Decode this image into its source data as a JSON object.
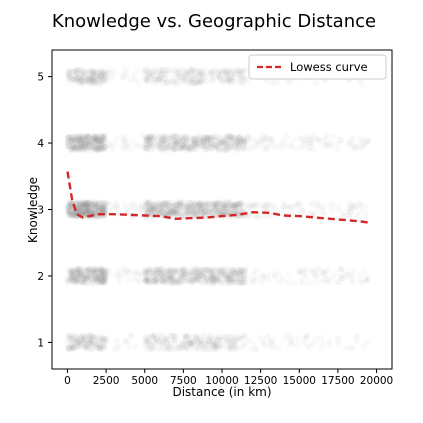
{
  "chart_data": {
    "type": "scatter",
    "title": "Knowledge vs. Geographic Distance",
    "xlabel": "Distance (in km)",
    "ylabel": "Knowledge",
    "xlim": [
      -1000,
      21000
    ],
    "ylim": [
      0.6,
      5.4
    ],
    "xticks": [
      0,
      2500,
      5000,
      7500,
      10000,
      12500,
      15000,
      17500,
      20000
    ],
    "yticks": [
      1,
      2,
      3,
      4,
      5
    ],
    "grid": false,
    "legend": {
      "placement": "top-right",
      "entries": [
        "Lowess curve"
      ]
    },
    "colors": {
      "scatter": "#808080",
      "lowess": "#d62728"
    },
    "scatter_levels": [
      1,
      2,
      3,
      4,
      5
    ],
    "scatter_x_range": [
      0,
      19500
    ],
    "series": [
      {
        "name": "Lowess curve",
        "style": "dashed",
        "x": [
          0,
          300,
          600,
          1000,
          2000,
          3000,
          4000,
          5000,
          6000,
          7000,
          8000,
          9000,
          10000,
          11000,
          12000,
          13000,
          14000,
          15000,
          16000,
          17000,
          18000,
          19000,
          19600
        ],
        "y": [
          3.57,
          3.15,
          2.93,
          2.88,
          2.93,
          2.93,
          2.92,
          2.91,
          2.9,
          2.86,
          2.87,
          2.88,
          2.9,
          2.92,
          2.96,
          2.95,
          2.91,
          2.9,
          2.88,
          2.86,
          2.84,
          2.82,
          2.8
        ]
      }
    ]
  }
}
